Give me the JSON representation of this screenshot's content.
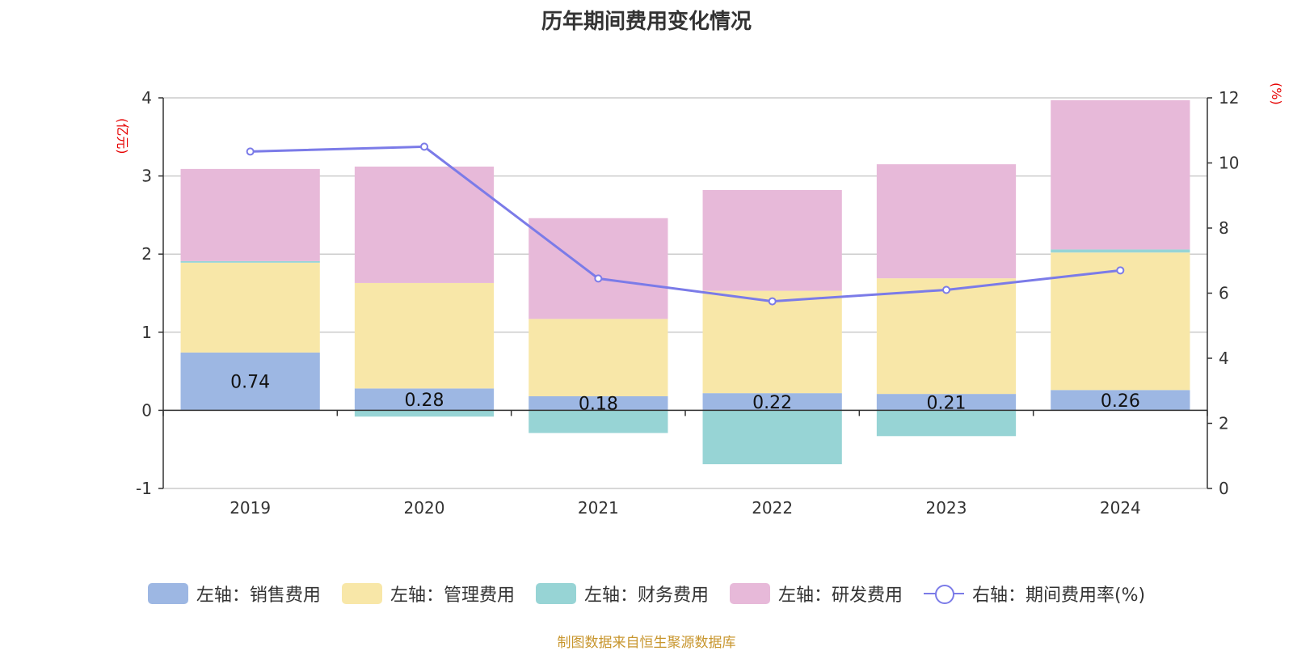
{
  "chart_data": {
    "type": "bar",
    "title": "历年期间费用变化情况",
    "categories": [
      "2019",
      "2020",
      "2021",
      "2022",
      "2023",
      "2024"
    ],
    "stacked": true,
    "left_axis": {
      "unit": "(亿元)",
      "ylim": [
        -1,
        4
      ],
      "ticks": [
        "-1",
        "0",
        "1",
        "2",
        "3",
        "4"
      ]
    },
    "right_axis": {
      "unit": "(%)",
      "ylim": [
        0,
        12
      ],
      "ticks": [
        "0",
        "2",
        "4",
        "6",
        "8",
        "10",
        "12"
      ]
    },
    "series": [
      {
        "name": "左轴：销售费用",
        "type": "bar",
        "axis": "left",
        "color": "#9db7e3",
        "values": [
          0.74,
          0.28,
          0.18,
          0.22,
          0.21,
          0.26
        ],
        "labels": [
          "0.74",
          "0.28",
          "0.18",
          "0.22",
          "0.21",
          "0.26"
        ]
      },
      {
        "name": "左轴：管理费用",
        "type": "bar",
        "axis": "left",
        "color": "#f8e7a8",
        "values": [
          1.15,
          1.35,
          0.99,
          1.31,
          1.48,
          1.76
        ]
      },
      {
        "name": "左轴：财务费用",
        "type": "bar",
        "axis": "left",
        "color": "#97d4d5",
        "values": [
          0.02,
          -0.08,
          -0.29,
          -0.69,
          -0.33,
          0.04
        ]
      },
      {
        "name": "左轴：研发费用",
        "type": "bar",
        "axis": "left",
        "color": "#e7b9d9",
        "values": [
          1.18,
          1.49,
          1.29,
          1.29,
          1.46,
          1.91
        ]
      },
      {
        "name": "右轴：期间费用率(%)",
        "type": "line",
        "axis": "right",
        "color": "#7b7be8",
        "values": [
          10.35,
          10.5,
          6.45,
          5.75,
          6.1,
          6.7
        ]
      }
    ],
    "grid": true,
    "legend_position": "bottom"
  },
  "source": "制图数据来自恒生聚源数据库"
}
